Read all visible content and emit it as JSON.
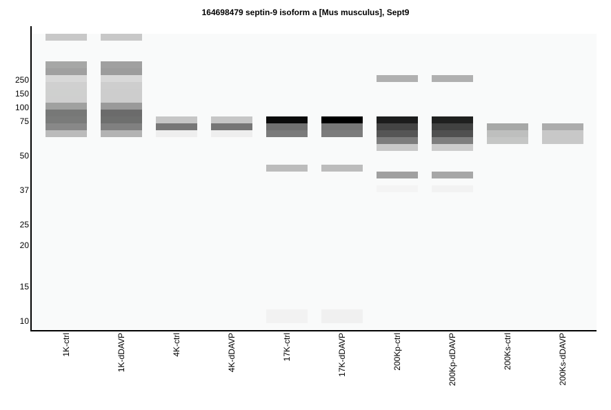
{
  "chart_data": {
    "type": "heatmap",
    "title": "164698479 septin-9 isoform a [Mus musculus], Sept9",
    "xlabel": "",
    "ylabel": "",
    "y_unit": "gel slice (top = 0)",
    "yticks": [
      {
        "label": "250",
        "slice": 6.7
      },
      {
        "label": "150",
        "slice": 8.7
      },
      {
        "label": "100",
        "slice": 10.7
      },
      {
        "label": "75",
        "slice": 12.7
      },
      {
        "label": "50",
        "slice": 17.7
      },
      {
        "label": "37",
        "slice": 22.7
      },
      {
        "label": "25",
        "slice": 27.7
      },
      {
        "label": "20",
        "slice": 30.7
      },
      {
        "label": "15",
        "slice": 36.7
      },
      {
        "label": "10",
        "slice": 41.7
      }
    ],
    "total_slices": 43,
    "lanes": [
      {
        "name": "1K-ctrl",
        "bands": [
          [
            0,
            "#c8c8c8"
          ],
          [
            4,
            "#a6a7a6"
          ],
          [
            5,
            "#a0a0a0"
          ],
          [
            6,
            "#d8d8d8"
          ],
          [
            7,
            "#d0d0d0"
          ],
          [
            8,
            "#cfd0cf"
          ],
          [
            9,
            "#cfcfcf"
          ],
          [
            10,
            "#a0a1a0"
          ],
          [
            11,
            "#777877"
          ],
          [
            12,
            "#7a7b7a"
          ],
          [
            13,
            "#888888"
          ],
          [
            14,
            "#bbbbbb"
          ]
        ]
      },
      {
        "name": "1K-dDAVP",
        "bands": [
          [
            0,
            "#c8c8c8"
          ],
          [
            4,
            "#a0a0a0"
          ],
          [
            5,
            "#9c9c9c"
          ],
          [
            6,
            "#d8d8d8"
          ],
          [
            7,
            "#cecece"
          ],
          [
            8,
            "#cdcdcd"
          ],
          [
            9,
            "#cdcdcd"
          ],
          [
            10,
            "#9a9a9a"
          ],
          [
            11,
            "#6b6b6b"
          ],
          [
            12,
            "#6e6f6e"
          ],
          [
            13,
            "#808080"
          ],
          [
            14,
            "#b3b3b3"
          ]
        ]
      },
      {
        "name": "4K-ctrl",
        "bands": [
          [
            12,
            "#c6c6c6"
          ],
          [
            13,
            "#777777"
          ],
          [
            14,
            "#eeeeee"
          ]
        ]
      },
      {
        "name": "4K-dDAVP",
        "bands": [
          [
            12,
            "#c6c6c6"
          ],
          [
            13,
            "#767676"
          ],
          [
            14,
            "#eeeeee"
          ]
        ]
      },
      {
        "name": "17K-ctrl",
        "bands": [
          [
            12,
            "#0a0a0a"
          ],
          [
            13,
            "#707070"
          ],
          [
            14,
            "#7b7b7b"
          ],
          [
            19,
            "#bcbcbc"
          ],
          [
            40,
            "#f2f2f2"
          ],
          [
            41,
            "#f2f2f2"
          ]
        ]
      },
      {
        "name": "17K-dDAVP",
        "bands": [
          [
            12,
            "#000000"
          ],
          [
            13,
            "#777777"
          ],
          [
            14,
            "#7c7c7c"
          ],
          [
            19,
            "#bcbcbc"
          ],
          [
            40,
            "#f0f0f0"
          ],
          [
            41,
            "#f0f0f0"
          ]
        ]
      },
      {
        "name": "200Kp-ctrl",
        "bands": [
          [
            6,
            "#b0b0b0"
          ],
          [
            12,
            "#1c1c1c"
          ],
          [
            13,
            "#444444"
          ],
          [
            14,
            "#555555"
          ],
          [
            15,
            "#7c7c7c"
          ],
          [
            16,
            "#c8c8c8"
          ],
          [
            20,
            "#a0a0a0"
          ],
          [
            22,
            "#f4f4f4"
          ]
        ]
      },
      {
        "name": "200Kp-dDAVP",
        "bands": [
          [
            6,
            "#b0b0b0"
          ],
          [
            12,
            "#1f201f"
          ],
          [
            13,
            "#414241"
          ],
          [
            14,
            "#505050"
          ],
          [
            15,
            "#7e7e7e"
          ],
          [
            16,
            "#cccccc"
          ],
          [
            20,
            "#a7a7a7"
          ],
          [
            22,
            "#f2f2f2"
          ]
        ]
      },
      {
        "name": "200Ks-ctrl",
        "bands": [
          [
            13,
            "#a7a8a7"
          ],
          [
            14,
            "#bebfbe"
          ],
          [
            15,
            "#c5c6c5"
          ]
        ]
      },
      {
        "name": "200Ks-dDAVP",
        "bands": [
          [
            13,
            "#acacac"
          ],
          [
            14,
            "#c8c8c8"
          ],
          [
            15,
            "#c8c8c8"
          ]
        ]
      }
    ],
    "colors": {
      "plot_bg": "#f9fafa",
      "axis": "#000000"
    }
  }
}
